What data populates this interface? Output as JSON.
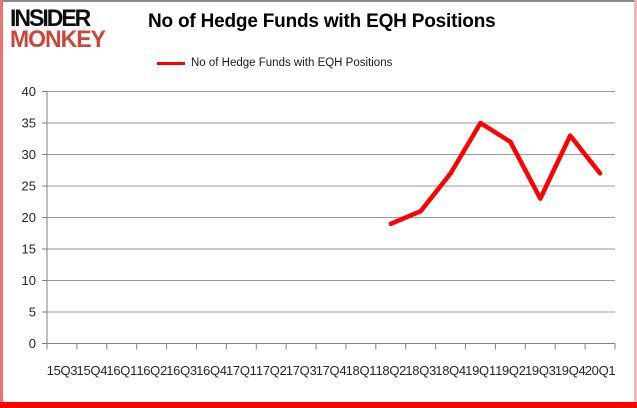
{
  "header": {
    "logo_line1": "INSIDER",
    "logo_line2": "MONKEY",
    "title": "No of Hedge Funds with EQH Positions"
  },
  "legend": {
    "label": "No of Hedge Funds with EQH Positions",
    "line_color": "#ff0000"
  },
  "chart_data": {
    "type": "line",
    "title": "No of Hedge Funds with EQH Positions",
    "categories": [
      "15Q3",
      "15Q4",
      "16Q1",
      "16Q2",
      "16Q3",
      "16Q4",
      "17Q1",
      "17Q2",
      "17Q3",
      "17Q4",
      "18Q1",
      "18Q2",
      "18Q3",
      "18Q4",
      "19Q1",
      "19Q2",
      "19Q3",
      "19Q4",
      "20Q1"
    ],
    "series": [
      {
        "name": "No of Hedge Funds with EQH Positions",
        "color": "#ff0000",
        "values": [
          null,
          null,
          null,
          null,
          null,
          null,
          null,
          null,
          null,
          null,
          null,
          19,
          21,
          27,
          35,
          32,
          23,
          33,
          27
        ]
      }
    ],
    "xlabel": "",
    "ylabel": "",
    "ylim": [
      0,
      40
    ],
    "yticks": [
      0,
      5,
      10,
      15,
      20,
      25,
      30,
      35,
      40
    ],
    "grid": true,
    "legend_position": "top-center"
  },
  "colors": {
    "line": "#ff0000",
    "logo_red": "#cc4537",
    "grid": "#999999",
    "axis": "#808080",
    "tick_label": "#262626",
    "frame_top": "#8c8c8c",
    "frame_left": "#f07070",
    "frame_right": "#edbaba",
    "frame_bottom": "#ff0000"
  }
}
